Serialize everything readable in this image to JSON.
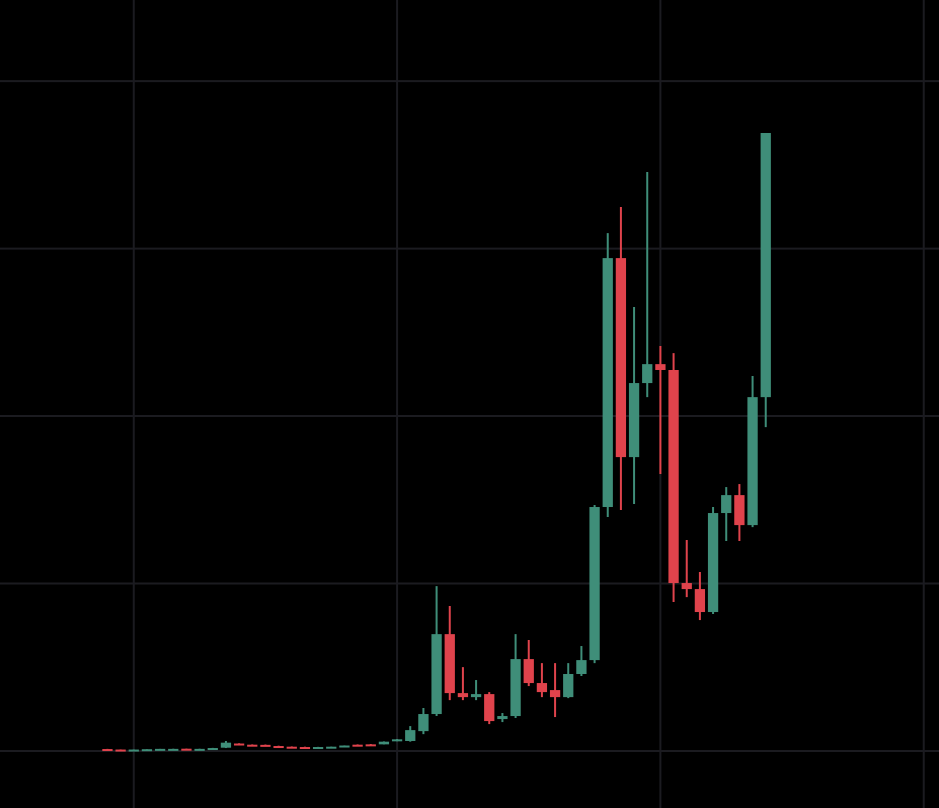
{
  "chart_data": {
    "type": "candlestick",
    "x": [
      0,
      1,
      2,
      3,
      4,
      5,
      6,
      7,
      8,
      9,
      10,
      11,
      12,
      13,
      14,
      15,
      16,
      17,
      18,
      19,
      20,
      21,
      22,
      23,
      24,
      25,
      26,
      27,
      28,
      29,
      30,
      31,
      32,
      33,
      34,
      35,
      36,
      37,
      38,
      39,
      40,
      41,
      42,
      43,
      44,
      45,
      46,
      47,
      48,
      49,
      50
    ],
    "open": [
      120,
      90,
      60,
      90,
      110,
      120,
      140,
      110,
      130,
      200,
      450,
      380,
      370,
      300,
      260,
      240,
      210,
      240,
      270,
      380,
      400,
      400,
      600,
      600,
      1190,
      2210,
      6980,
      3460,
      3220,
      3400,
      1910,
      2090,
      5490,
      4060,
      3640,
      3220,
      4600,
      5430,
      14570,
      29430,
      17550,
      21970,
      23100,
      22750,
      10030,
      9670,
      8300,
      14210,
      15280,
      13490,
      21130
    ],
    "high": [
      130,
      100,
      100,
      110,
      130,
      140,
      150,
      140,
      190,
      600,
      470,
      400,
      390,
      320,
      280,
      260,
      250,
      270,
      340,
      400,
      420,
      580,
      720,
      1490,
      2570,
      9850,
      8660,
      5010,
      4240,
      3520,
      2270,
      6980,
      6630,
      5250,
      5250,
      5250,
      6270,
      14690,
      30920,
      32480,
      26510,
      34570,
      24180,
      23760,
      12600,
      10690,
      14570,
      15760,
      15940,
      22390,
      36900
    ],
    "low": [
      70,
      50,
      50,
      80,
      100,
      110,
      100,
      100,
      120,
      180,
      330,
      340,
      320,
      240,
      210,
      190,
      200,
      230,
      260,
      350,
      370,
      390,
      580,
      560,
      1010,
      2090,
      3040,
      3040,
      3040,
      1610,
      1730,
      1970,
      3880,
      3220,
      2030,
      3160,
      4480,
      5250,
      13970,
      14390,
      14750,
      21130,
      16540,
      8900,
      9190,
      7820,
      8180,
      12540,
      12540,
      13370,
      19340
    ],
    "close": [
      80,
      60,
      90,
      110,
      130,
      130,
      110,
      130,
      180,
      500,
      350,
      350,
      330,
      250,
      220,
      200,
      240,
      260,
      330,
      360,
      380,
      560,
      700,
      1250,
      2210,
      6980,
      3460,
      3220,
      3400,
      1790,
      2090,
      5490,
      4060,
      3520,
      3220,
      4600,
      5430,
      14570,
      29430,
      17550,
      21970,
      23100,
      22750,
      10030,
      9670,
      8300,
      14210,
      15280,
      13490,
      21130,
      36900
    ],
    "up_color": "#3f8e79",
    "down_color": "#e0434c",
    "xlim": [
      -8.16,
      63.16
    ],
    "ylim": [
      -3400,
      44840
    ],
    "xticks": [
      2,
      22,
      42,
      62
    ],
    "yticks": [
      0,
      10000,
      20000,
      30000,
      40000
    ],
    "grid": true
  }
}
